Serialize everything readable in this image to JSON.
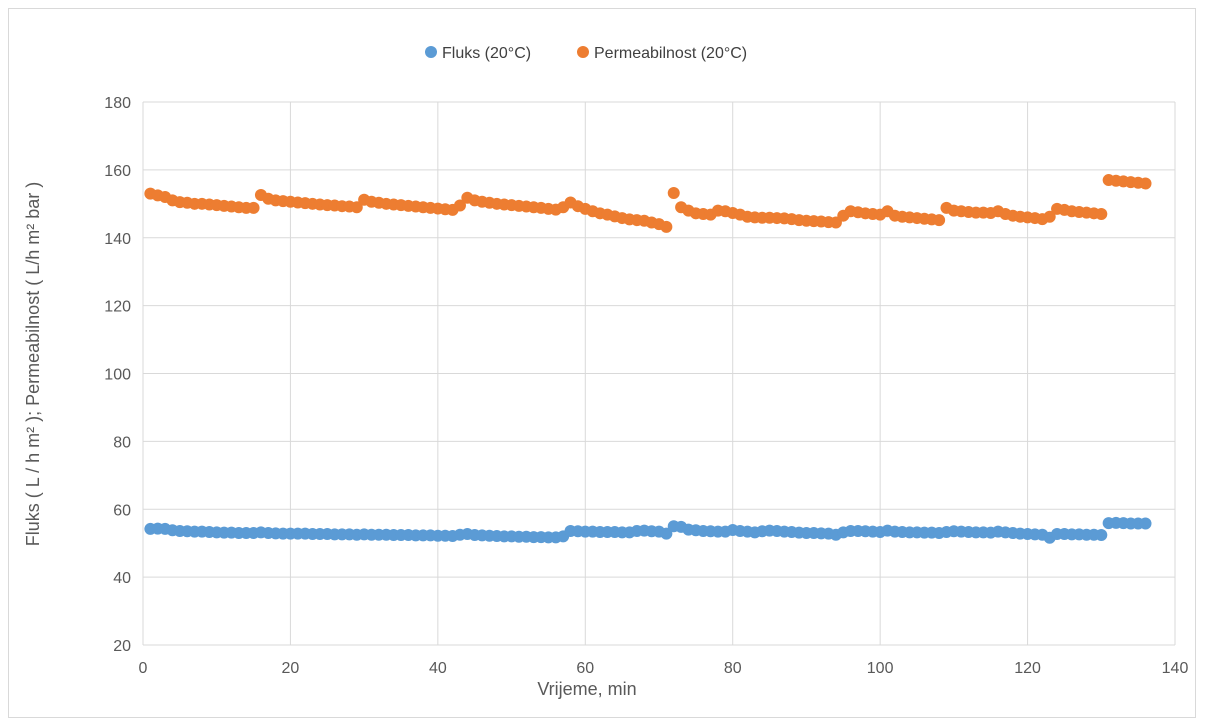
{
  "chart_data": {
    "type": "scatter",
    "xlabel": "Vrijeme, min",
    "ylabel": "Fluks ( L / h m² ); Permeabilnost ( L/h m² bar )",
    "xlim": [
      0,
      140
    ],
    "ylim": [
      20,
      180
    ],
    "xticks": [
      0,
      20,
      40,
      60,
      80,
      100,
      120,
      140
    ],
    "yticks": [
      20,
      40,
      60,
      80,
      100,
      120,
      140,
      160,
      180
    ],
    "grid": true,
    "legend_position": "top",
    "series": [
      {
        "name": "Fluks (20°C)",
        "color": "#5b9bd5",
        "points": [
          [
            1,
            54.2
          ],
          [
            2,
            54.3
          ],
          [
            3,
            54.2
          ],
          [
            4,
            53.8
          ],
          [
            5,
            53.6
          ],
          [
            6,
            53.5
          ],
          [
            7,
            53.4
          ],
          [
            8,
            53.4
          ],
          [
            9,
            53.3
          ],
          [
            10,
            53.2
          ],
          [
            11,
            53.1
          ],
          [
            12,
            53.1
          ],
          [
            13,
            53.0
          ],
          [
            14,
            53.0
          ],
          [
            15,
            53.0
          ],
          [
            16,
            53.2
          ],
          [
            17,
            53.0
          ],
          [
            18,
            52.9
          ],
          [
            19,
            52.8
          ],
          [
            20,
            52.8
          ],
          [
            21,
            52.8
          ],
          [
            22,
            52.8
          ],
          [
            23,
            52.7
          ],
          [
            24,
            52.7
          ],
          [
            25,
            52.7
          ],
          [
            26,
            52.6
          ],
          [
            27,
            52.6
          ],
          [
            28,
            52.6
          ],
          [
            29,
            52.5
          ],
          [
            30,
            52.6
          ],
          [
            31,
            52.5
          ],
          [
            32,
            52.5
          ],
          [
            33,
            52.5
          ],
          [
            34,
            52.4
          ],
          [
            35,
            52.4
          ],
          [
            36,
            52.4
          ],
          [
            37,
            52.3
          ],
          [
            38,
            52.3
          ],
          [
            39,
            52.3
          ],
          [
            40,
            52.2
          ],
          [
            41,
            52.2
          ],
          [
            42,
            52.1
          ],
          [
            43,
            52.5
          ],
          [
            44,
            52.7
          ],
          [
            45,
            52.4
          ],
          [
            46,
            52.3
          ],
          [
            47,
            52.2
          ],
          [
            48,
            52.1
          ],
          [
            49,
            52.0
          ],
          [
            50,
            52.0
          ],
          [
            51,
            51.9
          ],
          [
            52,
            51.9
          ],
          [
            53,
            51.8
          ],
          [
            54,
            51.8
          ],
          [
            55,
            51.7
          ],
          [
            56,
            51.7
          ],
          [
            57,
            52.0
          ],
          [
            58,
            53.6
          ],
          [
            59,
            53.5
          ],
          [
            60,
            53.4
          ],
          [
            61,
            53.4
          ],
          [
            62,
            53.3
          ],
          [
            63,
            53.3
          ],
          [
            64,
            53.3
          ],
          [
            65,
            53.2
          ],
          [
            66,
            53.2
          ],
          [
            67,
            53.6
          ],
          [
            68,
            53.7
          ],
          [
            69,
            53.5
          ],
          [
            70,
            53.4
          ],
          [
            71,
            52.8
          ],
          [
            72,
            55.0
          ],
          [
            73,
            54.8
          ],
          [
            74,
            54.0
          ],
          [
            75,
            53.8
          ],
          [
            76,
            53.6
          ],
          [
            77,
            53.5
          ],
          [
            78,
            53.4
          ],
          [
            79,
            53.4
          ],
          [
            80,
            53.9
          ],
          [
            81,
            53.6
          ],
          [
            82,
            53.4
          ],
          [
            83,
            53.2
          ],
          [
            84,
            53.5
          ],
          [
            85,
            53.7
          ],
          [
            86,
            53.6
          ],
          [
            87,
            53.4
          ],
          [
            88,
            53.3
          ],
          [
            89,
            53.1
          ],
          [
            90,
            53.0
          ],
          [
            91,
            53.0
          ],
          [
            92,
            52.9
          ],
          [
            93,
            52.8
          ],
          [
            94,
            52.5
          ],
          [
            95,
            53.2
          ],
          [
            96,
            53.6
          ],
          [
            97,
            53.6
          ],
          [
            98,
            53.5
          ],
          [
            99,
            53.4
          ],
          [
            100,
            53.3
          ],
          [
            101,
            53.7
          ],
          [
            102,
            53.4
          ],
          [
            103,
            53.3
          ],
          [
            104,
            53.2
          ],
          [
            105,
            53.2
          ],
          [
            106,
            53.1
          ],
          [
            107,
            53.1
          ],
          [
            108,
            53.0
          ],
          [
            109,
            53.3
          ],
          [
            110,
            53.5
          ],
          [
            111,
            53.4
          ],
          [
            112,
            53.3
          ],
          [
            113,
            53.2
          ],
          [
            114,
            53.2
          ],
          [
            115,
            53.1
          ],
          [
            116,
            53.4
          ],
          [
            117,
            53.2
          ],
          [
            118,
            53.0
          ],
          [
            119,
            52.8
          ],
          [
            120,
            52.7
          ],
          [
            121,
            52.6
          ],
          [
            122,
            52.5
          ],
          [
            123,
            51.6
          ],
          [
            124,
            52.7
          ],
          [
            125,
            52.7
          ],
          [
            126,
            52.6
          ],
          [
            127,
            52.6
          ],
          [
            128,
            52.5
          ],
          [
            129,
            52.5
          ],
          [
            130,
            52.4
          ],
          [
            131,
            55.9
          ],
          [
            132,
            56.0
          ],
          [
            133,
            55.9
          ],
          [
            134,
            55.8
          ],
          [
            135,
            55.8
          ],
          [
            136,
            55.8
          ]
        ]
      },
      {
        "name": "Permeabilnost (20°C)",
        "color": "#ed7d31",
        "points": [
          [
            1,
            153.0
          ],
          [
            2,
            152.5
          ],
          [
            3,
            152.0
          ],
          [
            4,
            151.0
          ],
          [
            5,
            150.5
          ],
          [
            6,
            150.3
          ],
          [
            7,
            150.0
          ],
          [
            8,
            150.0
          ],
          [
            9,
            149.8
          ],
          [
            10,
            149.6
          ],
          [
            11,
            149.4
          ],
          [
            12,
            149.2
          ],
          [
            13,
            149.0
          ],
          [
            14,
            148.8
          ],
          [
            15,
            148.8
          ],
          [
            16,
            152.6
          ],
          [
            17,
            151.5
          ],
          [
            18,
            151.0
          ],
          [
            19,
            150.8
          ],
          [
            20,
            150.6
          ],
          [
            21,
            150.4
          ],
          [
            22,
            150.2
          ],
          [
            23,
            150.0
          ],
          [
            24,
            149.8
          ],
          [
            25,
            149.6
          ],
          [
            26,
            149.5
          ],
          [
            27,
            149.3
          ],
          [
            28,
            149.2
          ],
          [
            29,
            149.0
          ],
          [
            30,
            151.2
          ],
          [
            31,
            150.6
          ],
          [
            32,
            150.3
          ],
          [
            33,
            150.0
          ],
          [
            34,
            149.8
          ],
          [
            35,
            149.6
          ],
          [
            36,
            149.4
          ],
          [
            37,
            149.2
          ],
          [
            38,
            149.0
          ],
          [
            39,
            148.8
          ],
          [
            40,
            148.6
          ],
          [
            41,
            148.4
          ],
          [
            42,
            148.2
          ],
          [
            43,
            149.5
          ],
          [
            44,
            151.8
          ],
          [
            45,
            151.0
          ],
          [
            46,
            150.6
          ],
          [
            47,
            150.3
          ],
          [
            48,
            150.0
          ],
          [
            49,
            149.8
          ],
          [
            50,
            149.6
          ],
          [
            51,
            149.4
          ],
          [
            52,
            149.2
          ],
          [
            53,
            149.0
          ],
          [
            54,
            148.8
          ],
          [
            55,
            148.5
          ],
          [
            56,
            148.3
          ],
          [
            57,
            149.0
          ],
          [
            58,
            150.4
          ],
          [
            59,
            149.3
          ],
          [
            60,
            148.5
          ],
          [
            61,
            147.8
          ],
          [
            62,
            147.2
          ],
          [
            63,
            146.8
          ],
          [
            64,
            146.3
          ],
          [
            65,
            145.8
          ],
          [
            66,
            145.4
          ],
          [
            67,
            145.2
          ],
          [
            68,
            145.0
          ],
          [
            69,
            144.5
          ],
          [
            70,
            144.0
          ],
          [
            71,
            143.2
          ],
          [
            72,
            153.2
          ],
          [
            73,
            149.0
          ],
          [
            74,
            148.0
          ],
          [
            75,
            147.2
          ],
          [
            76,
            147.0
          ],
          [
            77,
            146.8
          ],
          [
            78,
            148.0
          ],
          [
            79,
            147.8
          ],
          [
            80,
            147.3
          ],
          [
            81,
            146.8
          ],
          [
            82,
            146.2
          ],
          [
            83,
            146.0
          ],
          [
            84,
            145.9
          ],
          [
            85,
            145.9
          ],
          [
            86,
            145.8
          ],
          [
            87,
            145.7
          ],
          [
            88,
            145.5
          ],
          [
            89,
            145.2
          ],
          [
            90,
            145.0
          ],
          [
            91,
            144.9
          ],
          [
            92,
            144.8
          ],
          [
            93,
            144.6
          ],
          [
            94,
            144.5
          ],
          [
            95,
            146.5
          ],
          [
            96,
            147.8
          ],
          [
            97,
            147.5
          ],
          [
            98,
            147.2
          ],
          [
            99,
            147.0
          ],
          [
            100,
            146.8
          ],
          [
            101,
            147.8
          ],
          [
            102,
            146.5
          ],
          [
            103,
            146.2
          ],
          [
            104,
            146.0
          ],
          [
            105,
            145.8
          ],
          [
            106,
            145.6
          ],
          [
            107,
            145.4
          ],
          [
            108,
            145.2
          ],
          [
            109,
            148.8
          ],
          [
            110,
            148.0
          ],
          [
            111,
            147.8
          ],
          [
            112,
            147.6
          ],
          [
            113,
            147.4
          ],
          [
            114,
            147.4
          ],
          [
            115,
            147.3
          ],
          [
            116,
            147.8
          ],
          [
            117,
            147.0
          ],
          [
            118,
            146.5
          ],
          [
            119,
            146.2
          ],
          [
            120,
            146.0
          ],
          [
            121,
            145.8
          ],
          [
            122,
            145.5
          ],
          [
            123,
            146.2
          ],
          [
            124,
            148.5
          ],
          [
            125,
            148.2
          ],
          [
            126,
            147.8
          ],
          [
            127,
            147.6
          ],
          [
            128,
            147.4
          ],
          [
            129,
            147.2
          ],
          [
            130,
            147.0
          ],
          [
            131,
            157.0
          ],
          [
            132,
            156.8
          ],
          [
            133,
            156.6
          ],
          [
            134,
            156.4
          ],
          [
            135,
            156.2
          ],
          [
            136,
            156.0
          ]
        ]
      }
    ]
  }
}
